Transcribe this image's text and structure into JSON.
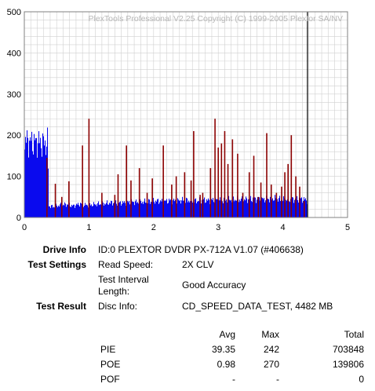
{
  "chart_data": {
    "type": "bar",
    "watermark": "PlexTools Professional V2.25 Copyright (C) 1999-2005 Plextor SA/NV",
    "xlim": [
      0,
      5
    ],
    "ylim": [
      0,
      500
    ],
    "x_ticks": [
      "0",
      "1",
      "2",
      "3",
      "4",
      "5"
    ],
    "y_ticks": [
      "0",
      "100",
      "200",
      "300",
      "400",
      "500"
    ],
    "grid": true,
    "marker_x": 4.38,
    "colors": {
      "pie": "#0a0aee",
      "poe": "#8b0000",
      "marker": "#000000",
      "grid": "#d0d0d0"
    },
    "series": [
      {
        "key": "pie",
        "points": [
          [
            0.0,
            185
          ],
          [
            0.05,
            186
          ],
          [
            0.1,
            183
          ],
          [
            0.15,
            182
          ],
          [
            0.2,
            184
          ],
          [
            0.25,
            181
          ],
          [
            0.3,
            180
          ],
          [
            0.36,
            182
          ],
          [
            0.37,
            28
          ],
          [
            0.45,
            26
          ],
          [
            0.55,
            30
          ],
          [
            0.65,
            32
          ],
          [
            0.75,
            28
          ],
          [
            0.85,
            33
          ],
          [
            0.95,
            30
          ],
          [
            1.05,
            31
          ],
          [
            1.15,
            33
          ],
          [
            1.25,
            34
          ],
          [
            1.35,
            36
          ],
          [
            1.45,
            35
          ],
          [
            1.55,
            36
          ],
          [
            1.65,
            38
          ],
          [
            1.75,
            37
          ],
          [
            1.85,
            38
          ],
          [
            1.95,
            39
          ],
          [
            2.05,
            40
          ],
          [
            2.15,
            39
          ],
          [
            2.25,
            41
          ],
          [
            2.35,
            40
          ],
          [
            2.45,
            42
          ],
          [
            2.55,
            41
          ],
          [
            2.65,
            40
          ],
          [
            2.75,
            42
          ],
          [
            2.85,
            41
          ],
          [
            2.95,
            43
          ],
          [
            3.05,
            42
          ],
          [
            3.15,
            43
          ],
          [
            3.25,
            44
          ],
          [
            3.35,
            43
          ],
          [
            3.45,
            44
          ],
          [
            3.55,
            45
          ],
          [
            3.65,
            44
          ],
          [
            3.75,
            45
          ],
          [
            3.85,
            46
          ],
          [
            3.95,
            44
          ],
          [
            4.05,
            43
          ],
          [
            4.15,
            44
          ],
          [
            4.25,
            45
          ],
          [
            4.35,
            43
          ],
          [
            4.38,
            40
          ]
        ]
      },
      {
        "key": "poe",
        "points": [
          [
            0.35,
            145
          ],
          [
            0.48,
            82
          ],
          [
            0.58,
            50
          ],
          [
            0.69,
            88
          ],
          [
            0.9,
            175
          ],
          [
            1.0,
            240
          ],
          [
            1.2,
            60
          ],
          [
            1.4,
            55
          ],
          [
            1.45,
            105
          ],
          [
            1.58,
            175
          ],
          [
            1.65,
            90
          ],
          [
            1.78,
            120
          ],
          [
            1.9,
            60
          ],
          [
            1.98,
            95
          ],
          [
            2.15,
            175
          ],
          [
            2.28,
            80
          ],
          [
            2.35,
            100
          ],
          [
            2.48,
            110
          ],
          [
            2.58,
            90
          ],
          [
            2.62,
            210
          ],
          [
            2.72,
            55
          ],
          [
            2.76,
            60
          ],
          [
            2.88,
            120
          ],
          [
            2.95,
            240
          ],
          [
            3.0,
            170
          ],
          [
            3.05,
            180
          ],
          [
            3.1,
            210
          ],
          [
            3.15,
            130
          ],
          [
            3.22,
            190
          ],
          [
            3.3,
            155
          ],
          [
            3.38,
            60
          ],
          [
            3.48,
            110
          ],
          [
            3.55,
            150
          ],
          [
            3.62,
            50
          ],
          [
            3.66,
            85
          ],
          [
            3.75,
            205
          ],
          [
            3.82,
            80
          ],
          [
            3.9,
            60
          ],
          [
            3.98,
            75
          ],
          [
            4.03,
            110
          ],
          [
            4.08,
            130
          ],
          [
            4.13,
            200
          ],
          [
            4.2,
            100
          ],
          [
            4.26,
            75
          ],
          [
            4.33,
            40
          ]
        ]
      }
    ]
  },
  "info": {
    "drive_info_label": "Drive Info",
    "drive_info_value": "ID:0 PLEXTOR DVDR PX-712A V1.07 (#406638)",
    "test_settings_label": "Test Settings",
    "read_speed_label": "Read Speed:",
    "read_speed_value": "2X CLV",
    "interval_label_1": "Test Interval",
    "interval_label_2": "Length:",
    "interval_value": "Good Accuracy",
    "test_result_label": "Test Result",
    "disc_info_label": "Disc Info:",
    "disc_info_value": "CD_SPEED_DATA_TEST, 4482 MB"
  },
  "results": {
    "headers": [
      "Avg",
      "Max",
      "Total"
    ],
    "rows": [
      {
        "name": "PIE",
        "avg": "39.35",
        "max": "242",
        "total": "703848"
      },
      {
        "name": "POE",
        "avg": "0.98",
        "max": "270",
        "total": "139806"
      },
      {
        "name": "POF",
        "avg": "-",
        "max": "-",
        "total": "0"
      }
    ]
  }
}
